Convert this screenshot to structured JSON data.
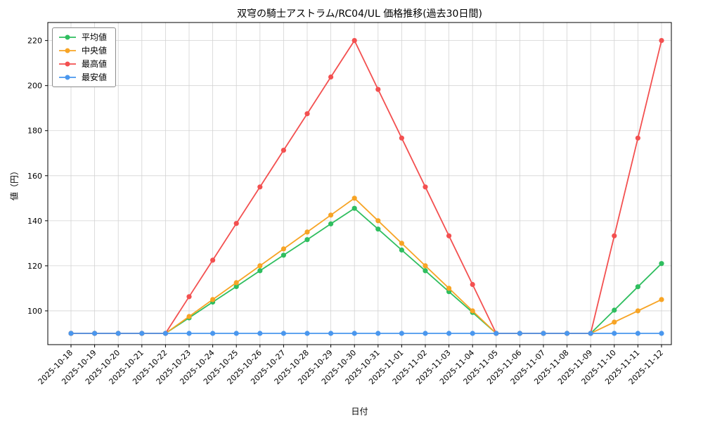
{
  "chart_data": {
    "type": "line",
    "title": "双穹の騎士アストラム/RC04/UL 価格推移(過去30日間)",
    "xlabel": "日付",
    "ylabel": "値（円）",
    "categories": [
      "2025-10-18",
      "2025-10-19",
      "2025-10-20",
      "2025-10-21",
      "2025-10-22",
      "2025-10-23",
      "2025-10-24",
      "2025-10-25",
      "2025-10-26",
      "2025-10-27",
      "2025-10-28",
      "2025-10-29",
      "2025-10-30",
      "2025-10-31",
      "2025-11-01",
      "2025-11-02",
      "2025-11-03",
      "2025-11-04",
      "2025-11-05",
      "2025-11-06",
      "2025-11-07",
      "2025-11-08",
      "2025-11-09",
      "2025-11-10",
      "2025-11-11",
      "2025-11-12"
    ],
    "series": [
      {
        "name": "平均値",
        "color": "#2fbe5f",
        "values": [
          90,
          90,
          90,
          90,
          90,
          96.9,
          103.9,
          110.8,
          117.8,
          124.7,
          131.6,
          138.6,
          145.5,
          136.3,
          127,
          117.8,
          108.5,
          99.3,
          90,
          90,
          90,
          90,
          90,
          100.3,
          110.7,
          121
        ]
      },
      {
        "name": "中央値",
        "color": "#f7a425",
        "values": [
          90,
          90,
          90,
          90,
          90,
          97.5,
          105,
          112.5,
          120,
          127.5,
          135,
          142.5,
          150,
          140,
          130,
          120,
          110,
          100,
          90,
          90,
          90,
          90,
          90,
          95,
          100,
          105
        ]
      },
      {
        "name": "最高値",
        "color": "#f35050",
        "values": [
          90,
          90,
          90,
          90,
          90,
          106.3,
          122.5,
          138.8,
          155,
          171.3,
          187.5,
          203.8,
          220,
          198.3,
          176.7,
          155,
          133.3,
          111.7,
          90,
          90,
          90,
          90,
          90,
          133.3,
          176.7,
          220
        ]
      },
      {
        "name": "最安値",
        "color": "#4a97ee",
        "values": [
          90,
          90,
          90,
          90,
          90,
          90,
          90,
          90,
          90,
          90,
          90,
          90,
          90,
          90,
          90,
          90,
          90,
          90,
          90,
          90,
          90,
          90,
          90,
          90,
          90,
          90
        ]
      }
    ],
    "yticks": [
      100,
      120,
      140,
      160,
      180,
      200,
      220
    ],
    "ylim": [
      85,
      228
    ],
    "grid": true,
    "legend_position": "upper-left"
  }
}
